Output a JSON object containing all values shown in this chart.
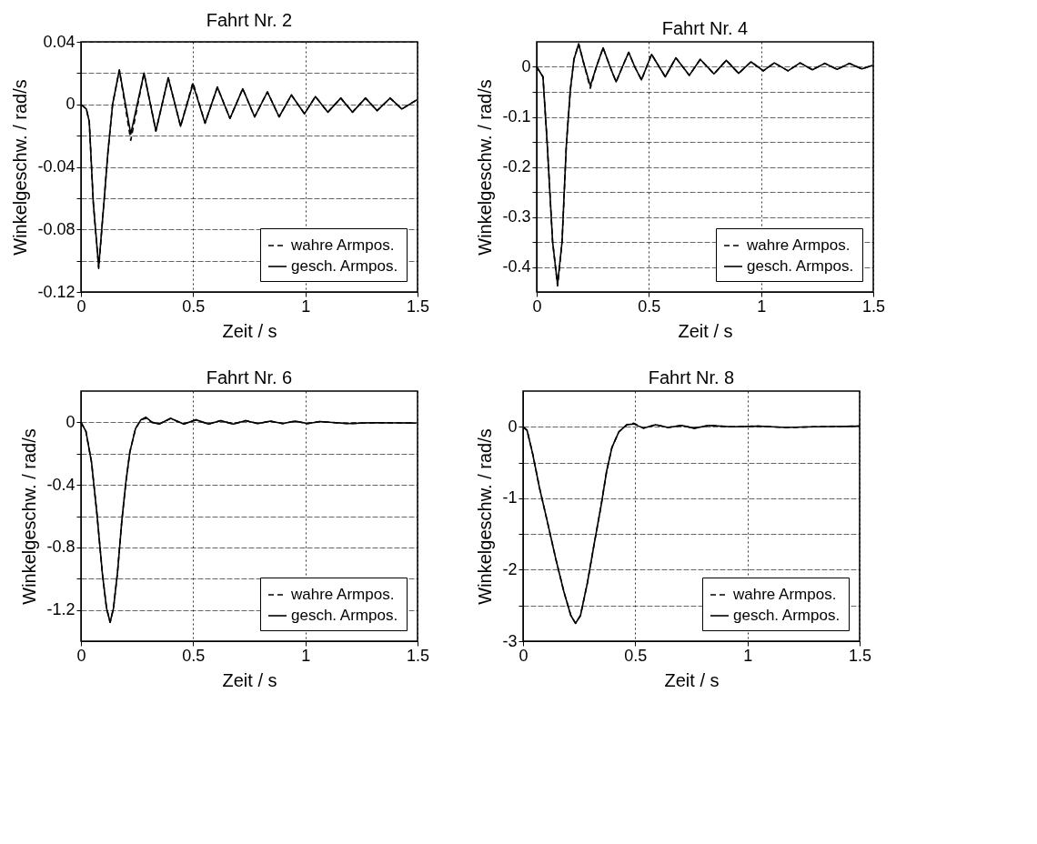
{
  "chart_data": [
    {
      "type": "line",
      "title": "Fahrt Nr. 2",
      "xlabel": "Zeit / s",
      "ylabel": "Winkelgeschw. / rad/s",
      "xlim": [
        0,
        1.5
      ],
      "xticks": [
        0,
        0.5,
        1,
        1.5
      ],
      "ylim": [
        -0.12,
        0.04
      ],
      "yticks": [
        0.04,
        {
          "value": 0.02,
          "label": null
        },
        0,
        {
          "value": -0.02,
          "label": null
        },
        -0.04,
        {
          "value": -0.06,
          "label": null
        },
        -0.08,
        {
          "value": -0.1,
          "label": null
        },
        -0.12
      ],
      "grid": true,
      "legend": "bottom right",
      "x": [
        0,
        0.024,
        0.037,
        0.055,
        0.079,
        0.104,
        0.12,
        0.141,
        0.171,
        0.222,
        0.281,
        0.334,
        0.389,
        0.444,
        0.499,
        0.553,
        0.608,
        0.664,
        0.721,
        0.774,
        0.831,
        0.883,
        0.938,
        0.996,
        1.045,
        1.1,
        1.158,
        1.21,
        1.268,
        1.32,
        1.378,
        1.43,
        1.498
      ],
      "series": [
        {
          "name": "wahre Armpos.",
          "color": "#000000",
          "line_style": "dashed",
          "values": [
            0,
            -0.003,
            -0.011,
            -0.063,
            -0.105,
            -0.06,
            -0.031,
            0,
            0.022,
            -0.023,
            0.02,
            -0.017,
            0.017,
            -0.014,
            0.014,
            -0.012,
            0.011,
            -0.009,
            0.01,
            -0.008,
            0.008,
            -0.008,
            0.006,
            -0.006,
            0.005,
            -0.005,
            0.004,
            -0.005,
            0.004,
            -0.004,
            0.004,
            -0.003,
            0.003
          ]
        },
        {
          "name": "gesch. Armpos.",
          "color": "#000000",
          "line_style": "solid",
          "values": [
            0,
            -0.003,
            -0.011,
            -0.063,
            -0.104,
            -0.06,
            -0.031,
            0,
            0.022,
            -0.019,
            0.02,
            -0.017,
            0.017,
            -0.014,
            0.013,
            -0.012,
            0.011,
            -0.009,
            0.01,
            -0.008,
            0.008,
            -0.008,
            0.006,
            -0.006,
            0.005,
            -0.005,
            0.004,
            -0.005,
            0.004,
            -0.004,
            0.004,
            -0.003,
            0.003
          ]
        }
      ]
    },
    {
      "type": "line",
      "title": "Fahrt Nr. 4",
      "xlabel": "Zeit / s",
      "ylabel": "Winkelgeschw. / rad/s",
      "xlim": [
        0,
        1.5
      ],
      "xticks": [
        0,
        0.5,
        1,
        1.5
      ],
      "ylim": [
        -0.45,
        0.05
      ],
      "yticks": [
        0,
        {
          "value": -0.05,
          "label": null
        },
        -0.1,
        {
          "value": -0.15,
          "label": null
        },
        -0.2,
        {
          "value": -0.25,
          "label": null
        },
        -0.3,
        {
          "value": -0.35,
          "label": null
        },
        -0.4
      ],
      "grid": true,
      "legend": "bottom right",
      "x": [
        0,
        0.028,
        0.046,
        0.071,
        0.093,
        0.113,
        0.132,
        0.15,
        0.166,
        0.187,
        0.211,
        0.239,
        0.266,
        0.296,
        0.327,
        0.354,
        0.382,
        0.41,
        0.437,
        0.467,
        0.512,
        0.573,
        0.62,
        0.68,
        0.729,
        0.79,
        0.845,
        0.9,
        0.955,
        1.01,
        1.059,
        1.12,
        1.174,
        1.229,
        1.284,
        1.339,
        1.394,
        1.449,
        1.498
      ],
      "series": [
        {
          "name": "wahre Armpos.",
          "color": "#000000",
          "line_style": "dashed",
          "values": [
            0,
            -0.02,
            -0.147,
            -0.35,
            -0.438,
            -0.35,
            -0.157,
            -0.046,
            0.015,
            0.046,
            0.005,
            -0.043,
            0,
            0.038,
            0,
            -0.03,
            0,
            0.029,
            0,
            -0.026,
            0.025,
            -0.02,
            0.018,
            -0.017,
            0.015,
            -0.014,
            0.013,
            -0.013,
            0.01,
            -0.008,
            0.008,
            -0.008,
            0.008,
            -0.006,
            0.007,
            -0.005,
            0.007,
            -0.004,
            0.003
          ]
        },
        {
          "name": "gesch. Armpos.",
          "color": "#000000",
          "line_style": "solid",
          "values": [
            0,
            -0.02,
            -0.147,
            -0.35,
            -0.435,
            -0.35,
            -0.157,
            -0.046,
            0.015,
            0.046,
            0.005,
            -0.038,
            0,
            0.038,
            0,
            -0.03,
            0,
            0.029,
            0,
            -0.026,
            0.025,
            -0.02,
            0.018,
            -0.017,
            0.015,
            -0.014,
            0.013,
            -0.013,
            0.01,
            -0.008,
            0.008,
            -0.008,
            0.008,
            -0.006,
            0.007,
            -0.005,
            0.007,
            -0.004,
            0.003
          ]
        }
      ]
    },
    {
      "type": "line",
      "title": "Fahrt Nr. 6",
      "xlabel": "Zeit / s",
      "ylabel": "Winkelgeschw. / rad/s",
      "xlim": [
        0,
        1.5
      ],
      "xticks": [
        0,
        0.5,
        1,
        1.5
      ],
      "ylim": [
        -1.4,
        0.2
      ],
      "yticks": [
        0,
        {
          "value": -0.2,
          "label": null
        },
        -0.4,
        {
          "value": -0.6,
          "label": null
        },
        -0.8,
        {
          "value": -1,
          "label": null
        },
        -1.2
      ],
      "grid": true,
      "legend": "bottom right",
      "x": [
        0,
        0.022,
        0.047,
        0.071,
        0.096,
        0.114,
        0.13,
        0.145,
        0.163,
        0.182,
        0.2,
        0.218,
        0.243,
        0.267,
        0.289,
        0.317,
        0.348,
        0.4,
        0.458,
        0.513,
        0.568,
        0.623,
        0.679,
        0.734,
        0.789,
        0.844,
        0.899,
        0.955,
        1.01,
        1.065,
        1.188,
        1.31,
        1.494
      ],
      "series": [
        {
          "name": "wahre Armpos.",
          "color": "#000000",
          "line_style": "dashed",
          "values": [
            0,
            -0.057,
            -0.254,
            -0.582,
            -0.975,
            -1.189,
            -1.279,
            -1.189,
            -0.959,
            -0.631,
            -0.385,
            -0.189,
            -0.041,
            0.016,
            0.025,
            0,
            -0.011,
            0.025,
            -0.011,
            0.016,
            -0.011,
            0.011,
            -0.011,
            0.011,
            -0.008,
            0.008,
            -0.008,
            0.008,
            -0.008,
            0.005,
            -0.008,
            -0.002,
            -0.005
          ]
        },
        {
          "name": "gesch. Armpos.",
          "color": "#000000",
          "line_style": "solid",
          "values": [
            0,
            -0.057,
            -0.254,
            -0.582,
            -0.975,
            -1.189,
            -1.279,
            -1.189,
            -0.959,
            -0.631,
            -0.385,
            -0.189,
            -0.041,
            0.016,
            0.033,
            0,
            -0.011,
            0.025,
            -0.011,
            0.016,
            -0.011,
            0.011,
            -0.011,
            0.011,
            -0.008,
            0.008,
            -0.008,
            0.008,
            -0.008,
            0.005,
            -0.008,
            -0.002,
            -0.005
          ]
        }
      ]
    },
    {
      "type": "line",
      "title": "Fahrt Nr. 8",
      "xlabel": "Zeit / s",
      "ylabel": "Winkelgeschw. / rad/s",
      "xlim": [
        0,
        1.5
      ],
      "xticks": [
        0,
        0.5,
        1,
        1.5
      ],
      "ylim": [
        -3,
        0.5
      ],
      "yticks": [
        0,
        {
          "value": -0.5,
          "label": null
        },
        -1,
        {
          "value": -1.5,
          "label": null
        },
        -2,
        {
          "value": -2.5,
          "label": null
        },
        -3
      ],
      "grid": true,
      "legend": "bottom right",
      "x": [
        0,
        0.018,
        0.043,
        0.073,
        0.11,
        0.146,
        0.183,
        0.213,
        0.234,
        0.256,
        0.287,
        0.317,
        0.348,
        0.372,
        0.396,
        0.427,
        0.463,
        0.494,
        0.537,
        0.591,
        0.646,
        0.707,
        0.762,
        0.829,
        0.927,
        1.049,
        1.171,
        1.293,
        1.5
      ],
      "series": [
        {
          "name": "wahre Armpos.",
          "color": "#000000",
          "line_style": "dashed",
          "values": [
            0,
            -0.05,
            -0.38,
            -0.85,
            -1.35,
            -1.85,
            -2.32,
            -2.64,
            -2.75,
            -2.64,
            -2.18,
            -1.64,
            -1.1,
            -0.63,
            -0.29,
            -0.07,
            0.03,
            0.05,
            -0.02,
            0.03,
            -0.01,
            0.02,
            -0.02,
            0.02,
            0,
            0.01,
            -0.01,
            0,
            0.01
          ]
        },
        {
          "name": "gesch. Armpos.",
          "color": "#000000",
          "line_style": "solid",
          "values": [
            0,
            -0.05,
            -0.38,
            -0.85,
            -1.35,
            -1.85,
            -2.32,
            -2.64,
            -2.75,
            -2.64,
            -2.18,
            -1.64,
            -1.1,
            -0.63,
            -0.29,
            -0.07,
            0.03,
            0.04,
            -0.02,
            0.03,
            -0.01,
            0.02,
            -0.02,
            0.02,
            0,
            0.01,
            -0.01,
            0,
            0.01
          ]
        }
      ]
    }
  ]
}
